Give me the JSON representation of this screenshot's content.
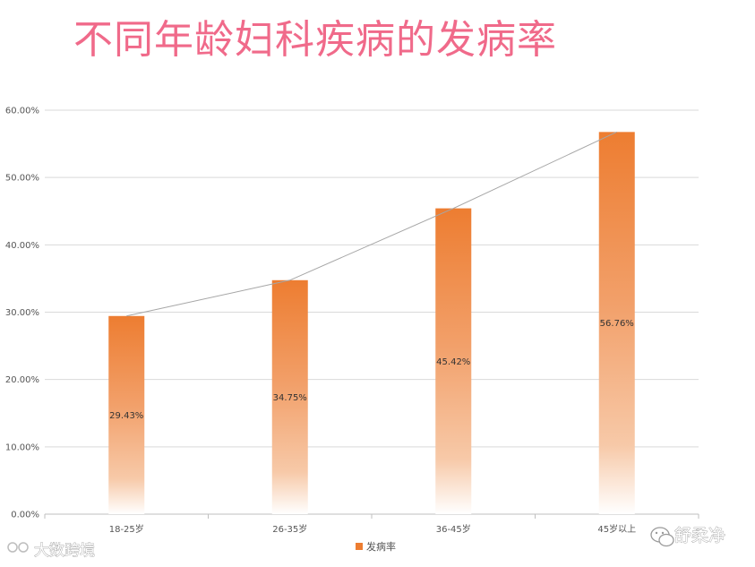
{
  "chart_data": {
    "type": "bar",
    "title": "不同年龄妇科疾病的发病率",
    "categories": [
      "18-25岁",
      "26-35岁",
      "36-45岁",
      "45岁以上"
    ],
    "series": [
      {
        "name": "发病率",
        "values": [
          29.43,
          34.75,
          45.42,
          56.76
        ],
        "data_labels": [
          "29.43%",
          "34.75%",
          "45.42%",
          "56.76%"
        ]
      }
    ],
    "trend_line": true,
    "ylim": [
      0,
      60
    ],
    "yticks": [
      0,
      10,
      20,
      30,
      40,
      50,
      60
    ],
    "ytick_labels": [
      "0.00%",
      "10.00%",
      "20.00%",
      "30.00%",
      "40.00%",
      "50.00%",
      "60.00%"
    ],
    "xlabel": "",
    "ylabel": "",
    "grid": true,
    "legend_position": "bottom-center",
    "colors": {
      "bar_top": "#ed7d31",
      "bar_bottom": "#ffffff",
      "trend_line": "#a6a6a6",
      "grid": "#d9d9d9",
      "axis": "#bfbfbf",
      "title": "#f06a8a"
    }
  },
  "watermarks": {
    "left": "大数跨境",
    "right": "舒柔净"
  }
}
